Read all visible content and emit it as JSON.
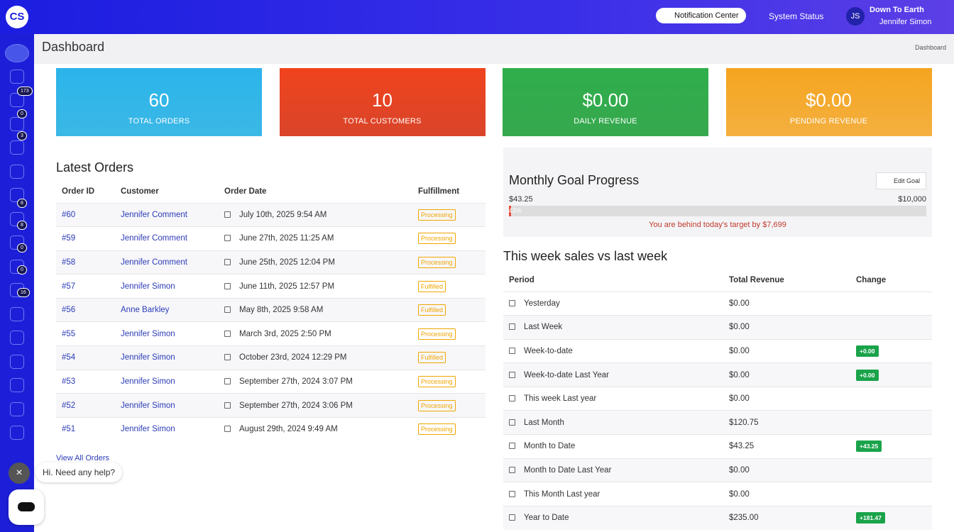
{
  "topbar": {
    "logo": "CS",
    "notification": "Notification Center",
    "status": "System Status",
    "initials": "JS",
    "org": "Down To Earth",
    "user": "Jennifer Simon"
  },
  "sidebar": {
    "badges": [
      null,
      null,
      "173",
      "0",
      "3",
      null,
      null,
      "8",
      "8",
      "0",
      "0",
      "16"
    ]
  },
  "page": {
    "title": "Dashboard",
    "breadcrumb": "Dashboard"
  },
  "stats": [
    {
      "value": "60",
      "label": "TOTAL ORDERS"
    },
    {
      "value": "10",
      "label": "TOTAL CUSTOMERS"
    },
    {
      "value": "$0.00",
      "label": "DAILY REVENUE"
    },
    {
      "value": "$0.00",
      "label": "PENDING REVENUE"
    }
  ],
  "orders": {
    "title": "Latest Orders",
    "headers": [
      "Order ID",
      "Customer",
      "Order Date",
      "Fulfillment"
    ],
    "rows": [
      [
        "#60",
        "Jennifer Comment",
        "July 10th, 2025 9:54 AM",
        "Processing"
      ],
      [
        "#59",
        "Jennifer Comment",
        "June 27th, 2025 11:25 AM",
        "Processing"
      ],
      [
        "#58",
        "Jennifer Comment",
        "June 25th, 2025 12:04 PM",
        "Processing"
      ],
      [
        "#57",
        "Jennifer Simon",
        "June 11th, 2025 12:57 PM",
        "Fulfilled"
      ],
      [
        "#56",
        "Anne Barkley",
        "May 8th, 2025 9:58 AM",
        "Fulfilled"
      ],
      [
        "#55",
        "Jennifer Simon",
        "March 3rd, 2025 2:50 PM",
        "Processing"
      ],
      [
        "#54",
        "Jennifer Simon",
        "October 23rd, 2024 12:29 PM",
        "Fulfilled"
      ],
      [
        "#53",
        "Jennifer Simon",
        "September 27th, 2024 3:07 PM",
        "Processing"
      ],
      [
        "#52",
        "Jennifer Simon",
        "September 27th, 2024 3:06 PM",
        "Processing"
      ],
      [
        "#51",
        "Jennifer Simon",
        "August 29th, 2024 9:49 AM",
        "Processing"
      ]
    ],
    "link": "View All Orders"
  },
  "goal": {
    "title": "Monthly Goal Progress",
    "edit": "Edit Goal",
    "current": "$43.25",
    "target": "$10,000",
    "percent": "0.43%",
    "message": "You are behind today's target by $7,699"
  },
  "sales": {
    "title": "This week sales vs last week",
    "headers": [
      "Period",
      "Total Revenue",
      "Change"
    ],
    "rows": [
      [
        "Yesterday",
        "$0.00",
        null
      ],
      [
        "Last Week",
        "$0.00",
        null
      ],
      [
        "Week-to-date",
        "$0.00",
        "+0.00"
      ],
      [
        "Week-to-date Last Year",
        "$0.00",
        "+0.00"
      ],
      [
        "This week Last year",
        "$0.00",
        null
      ],
      [
        "Last Month",
        "$120.75",
        null
      ],
      [
        "Month to Date",
        "$43.25",
        "+43.25"
      ],
      [
        "Month to Date Last Year",
        "$0.00",
        null
      ],
      [
        "This Month Last year",
        "$0.00",
        null
      ],
      [
        "Year to Date",
        "$235.00",
        "+181.47"
      ]
    ]
  },
  "help": {
    "message": "Hi. Need any help?"
  }
}
